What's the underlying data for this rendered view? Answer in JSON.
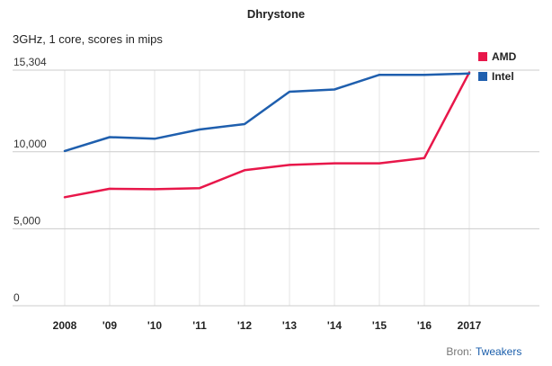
{
  "chart_data": {
    "type": "line",
    "title": "Dhrystone",
    "subtitle": "3GHz, 1 core, scores in mips",
    "x": [
      "2008",
      "'09",
      "'10",
      "'11",
      "'12",
      "'13",
      "'14",
      "'15",
      "'16",
      "2017"
    ],
    "y_ticks": [
      {
        "label": "0",
        "value": 0
      },
      {
        "label": "5,000",
        "value": 5000
      },
      {
        "label": "10,000",
        "value": 10000
      },
      {
        "label": "15,304",
        "value": 15304
      }
    ],
    "ylim": [
      0,
      15304
    ],
    "grid": true,
    "legend_position": "right",
    "series": [
      {
        "name": "AMD",
        "color": "#e8174a",
        "values": [
          7050,
          7600,
          7570,
          7640,
          8800,
          9150,
          9250,
          9250,
          9600,
          15150
        ]
      },
      {
        "name": "Intel",
        "color": "#1f5fae",
        "values": [
          10050,
          10950,
          10850,
          11450,
          11800,
          13900,
          14050,
          15000,
          15000,
          15080
        ]
      }
    ],
    "source_label": "Bron:",
    "source_link": "Tweakers"
  }
}
